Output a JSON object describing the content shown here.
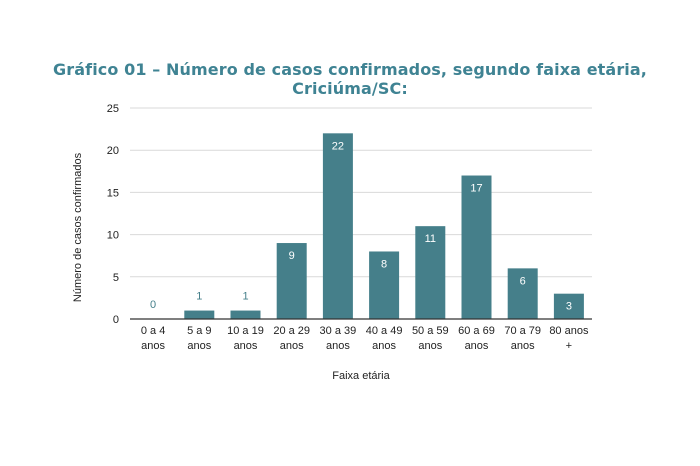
{
  "chart_data": {
    "type": "bar",
    "title": "Gráfico 01 – Número de casos confirmados, segundo faixa etária, Criciúma/SC:",
    "xlabel": "Faixa etária",
    "ylabel": "Número de casos confirmados",
    "ylim": [
      0,
      25
    ],
    "yticks": [
      0,
      5,
      10,
      15,
      20,
      25
    ],
    "grid": true,
    "categories": [
      [
        "0 a 4",
        "anos"
      ],
      [
        "5 a 9",
        "anos"
      ],
      [
        "10 a 19",
        "anos"
      ],
      [
        "20 a 29",
        "anos"
      ],
      [
        "30 a 39",
        "anos"
      ],
      [
        "40 a 49",
        "anos"
      ],
      [
        "50 a 59",
        "anos"
      ],
      [
        "60 a 69",
        "anos"
      ],
      [
        "70 a 79",
        "anos"
      ],
      [
        "80 anos",
        "+"
      ]
    ],
    "values": [
      0,
      1,
      1,
      9,
      22,
      8,
      11,
      17,
      6,
      3
    ],
    "colors": {
      "bar": "#457f8a",
      "label_inside": "#ffffff",
      "label_outside": "#457f8a",
      "grid": "#d9d9d9",
      "axis": "#333333",
      "title": "#3f8393"
    }
  }
}
